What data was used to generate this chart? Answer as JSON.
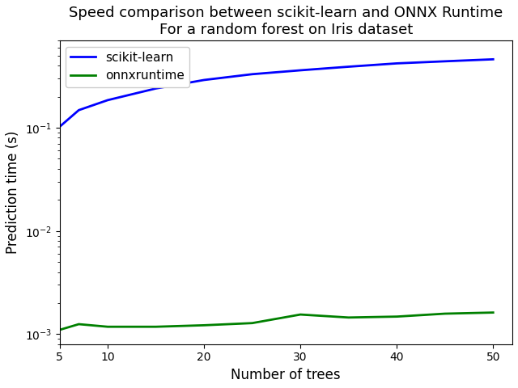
{
  "title": "Speed comparison between scikit-learn and ONNX Runtime\nFor a random forest on Iris dataset",
  "xlabel": "Number of trees",
  "ylabel": "Prediction time (s)",
  "sklearn_x": [
    5,
    7,
    10,
    15,
    20,
    25,
    30,
    35,
    40,
    45,
    50
  ],
  "sklearn_y": [
    0.102,
    0.148,
    0.185,
    0.24,
    0.29,
    0.33,
    0.36,
    0.39,
    0.42,
    0.44,
    0.46
  ],
  "onnx_x": [
    5,
    7,
    10,
    15,
    20,
    25,
    30,
    35,
    40,
    45,
    50
  ],
  "onnx_y": [
    0.0011,
    0.00125,
    0.00118,
    0.00118,
    0.00122,
    0.00128,
    0.00155,
    0.00145,
    0.00148,
    0.00158,
    0.00162
  ],
  "sklearn_color": "#0000ff",
  "onnx_color": "#008000",
  "sklearn_label": "scikit-learn",
  "onnx_label": "onnxruntime",
  "xlim": [
    5,
    52
  ],
  "ylim_low": 0.0008,
  "ylim_high": 0.7,
  "title_fontsize": 13,
  "axis_label_fontsize": 12,
  "legend_fontsize": 11,
  "line_width": 2.0,
  "background_color": "#ffffff"
}
